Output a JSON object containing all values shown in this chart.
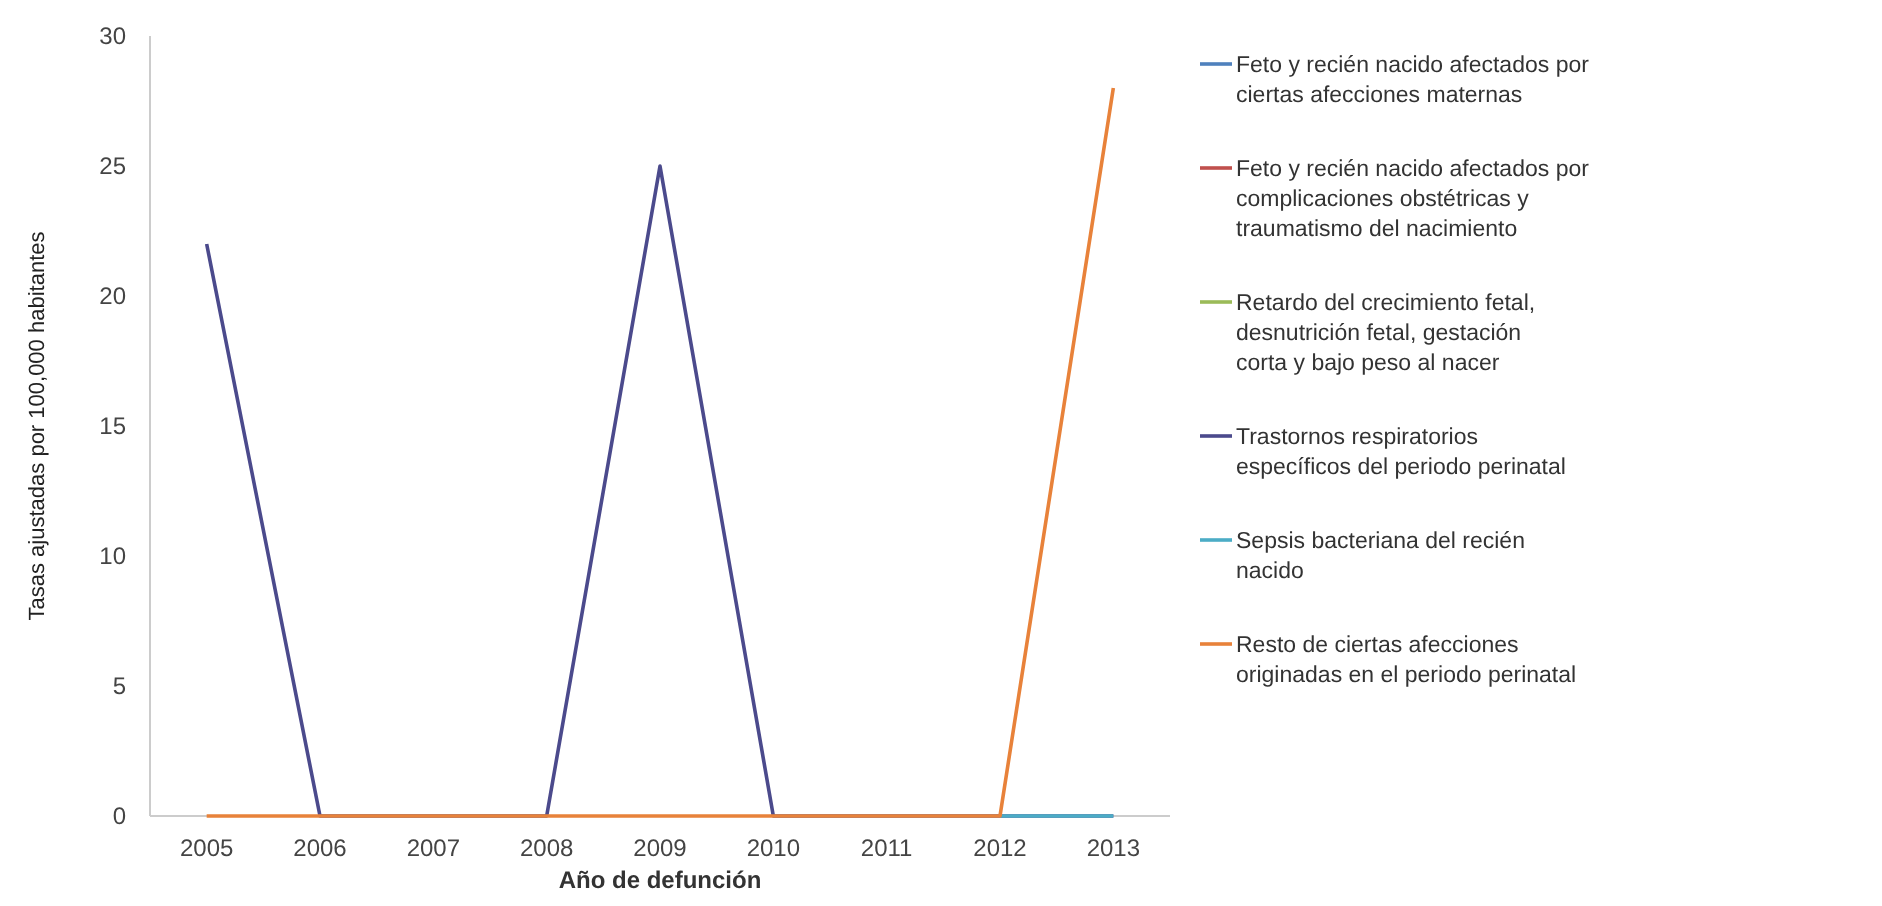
{
  "chart_data": {
    "type": "line",
    "xlabel": "Año de defunción",
    "ylabel": "Tasas ajustadas por 100,000 habitantes",
    "categories": [
      "2005",
      "2006",
      "2007",
      "2008",
      "2009",
      "2010",
      "2011",
      "2012",
      "2013"
    ],
    "ylim": [
      0,
      30
    ],
    "yticks": [
      0,
      5,
      10,
      15,
      20,
      25,
      30
    ],
    "grid": false,
    "legend": "right",
    "marker": "none",
    "line_style": "solid",
    "series": [
      {
        "name": "Feto y recién nacido afectados por ciertas afecciones maternas",
        "color": "#4f81bd",
        "values": [
          null,
          null,
          null,
          null,
          null,
          null,
          null,
          null,
          null
        ]
      },
      {
        "name": "Feto y recién nacido afectados por complicaciones obstétricas y traumatismo del nacimiento",
        "color": "#c0504d",
        "values": [
          null,
          null,
          null,
          null,
          null,
          null,
          null,
          null,
          null
        ]
      },
      {
        "name": "Retardo del crecimiento fetal, desnutrición fetal, gestación corta y bajo peso al nacer",
        "color": "#9bbb59",
        "values": [
          null,
          null,
          null,
          null,
          null,
          null,
          null,
          null,
          null
        ]
      },
      {
        "name": "Trastornos respiratorios específicos del periodo perinatal",
        "color": "#4b4a8c",
        "values": [
          22,
          0,
          0,
          0,
          25,
          0,
          0,
          0,
          0
        ]
      },
      {
        "name": "Sepsis bacteriana del recién nacido",
        "color": "#4bacc6",
        "values": [
          null,
          null,
          null,
          null,
          null,
          null,
          null,
          0,
          0
        ]
      },
      {
        "name": "Resto de ciertas afecciones originadas en el periodo perinatal",
        "color": "#e8823a",
        "values": [
          0,
          0,
          0,
          0,
          0,
          0,
          0,
          0,
          28
        ]
      }
    ]
  }
}
